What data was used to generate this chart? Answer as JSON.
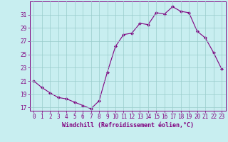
{
  "x": [
    0,
    1,
    2,
    3,
    4,
    5,
    6,
    7,
    8,
    9,
    10,
    11,
    12,
    13,
    14,
    15,
    16,
    17,
    18,
    19,
    20,
    21,
    22,
    23
  ],
  "y": [
    21.0,
    20.0,
    19.2,
    18.5,
    18.3,
    17.8,
    17.3,
    16.8,
    18.0,
    22.3,
    26.2,
    28.0,
    28.2,
    29.7,
    29.5,
    31.3,
    31.1,
    32.2,
    31.5,
    31.3,
    28.5,
    27.5,
    25.3,
    22.8
  ],
  "line_color": "#800080",
  "marker": "D",
  "marker_size": 2.0,
  "bg_color": "#c8eef0",
  "grid_color": "#99cccc",
  "xlabel": "Windchill (Refroidissement éolien,°C)",
  "xlabel_fontsize": 6.0,
  "tick_fontsize": 5.5,
  "ylim": [
    16.5,
    33.0
  ],
  "yticks": [
    17,
    19,
    21,
    23,
    25,
    27,
    29,
    31
  ],
  "xlim": [
    -0.5,
    23.5
  ],
  "xticks": [
    0,
    1,
    2,
    3,
    4,
    5,
    6,
    7,
    8,
    9,
    10,
    11,
    12,
    13,
    14,
    15,
    16,
    17,
    18,
    19,
    20,
    21,
    22,
    23
  ]
}
